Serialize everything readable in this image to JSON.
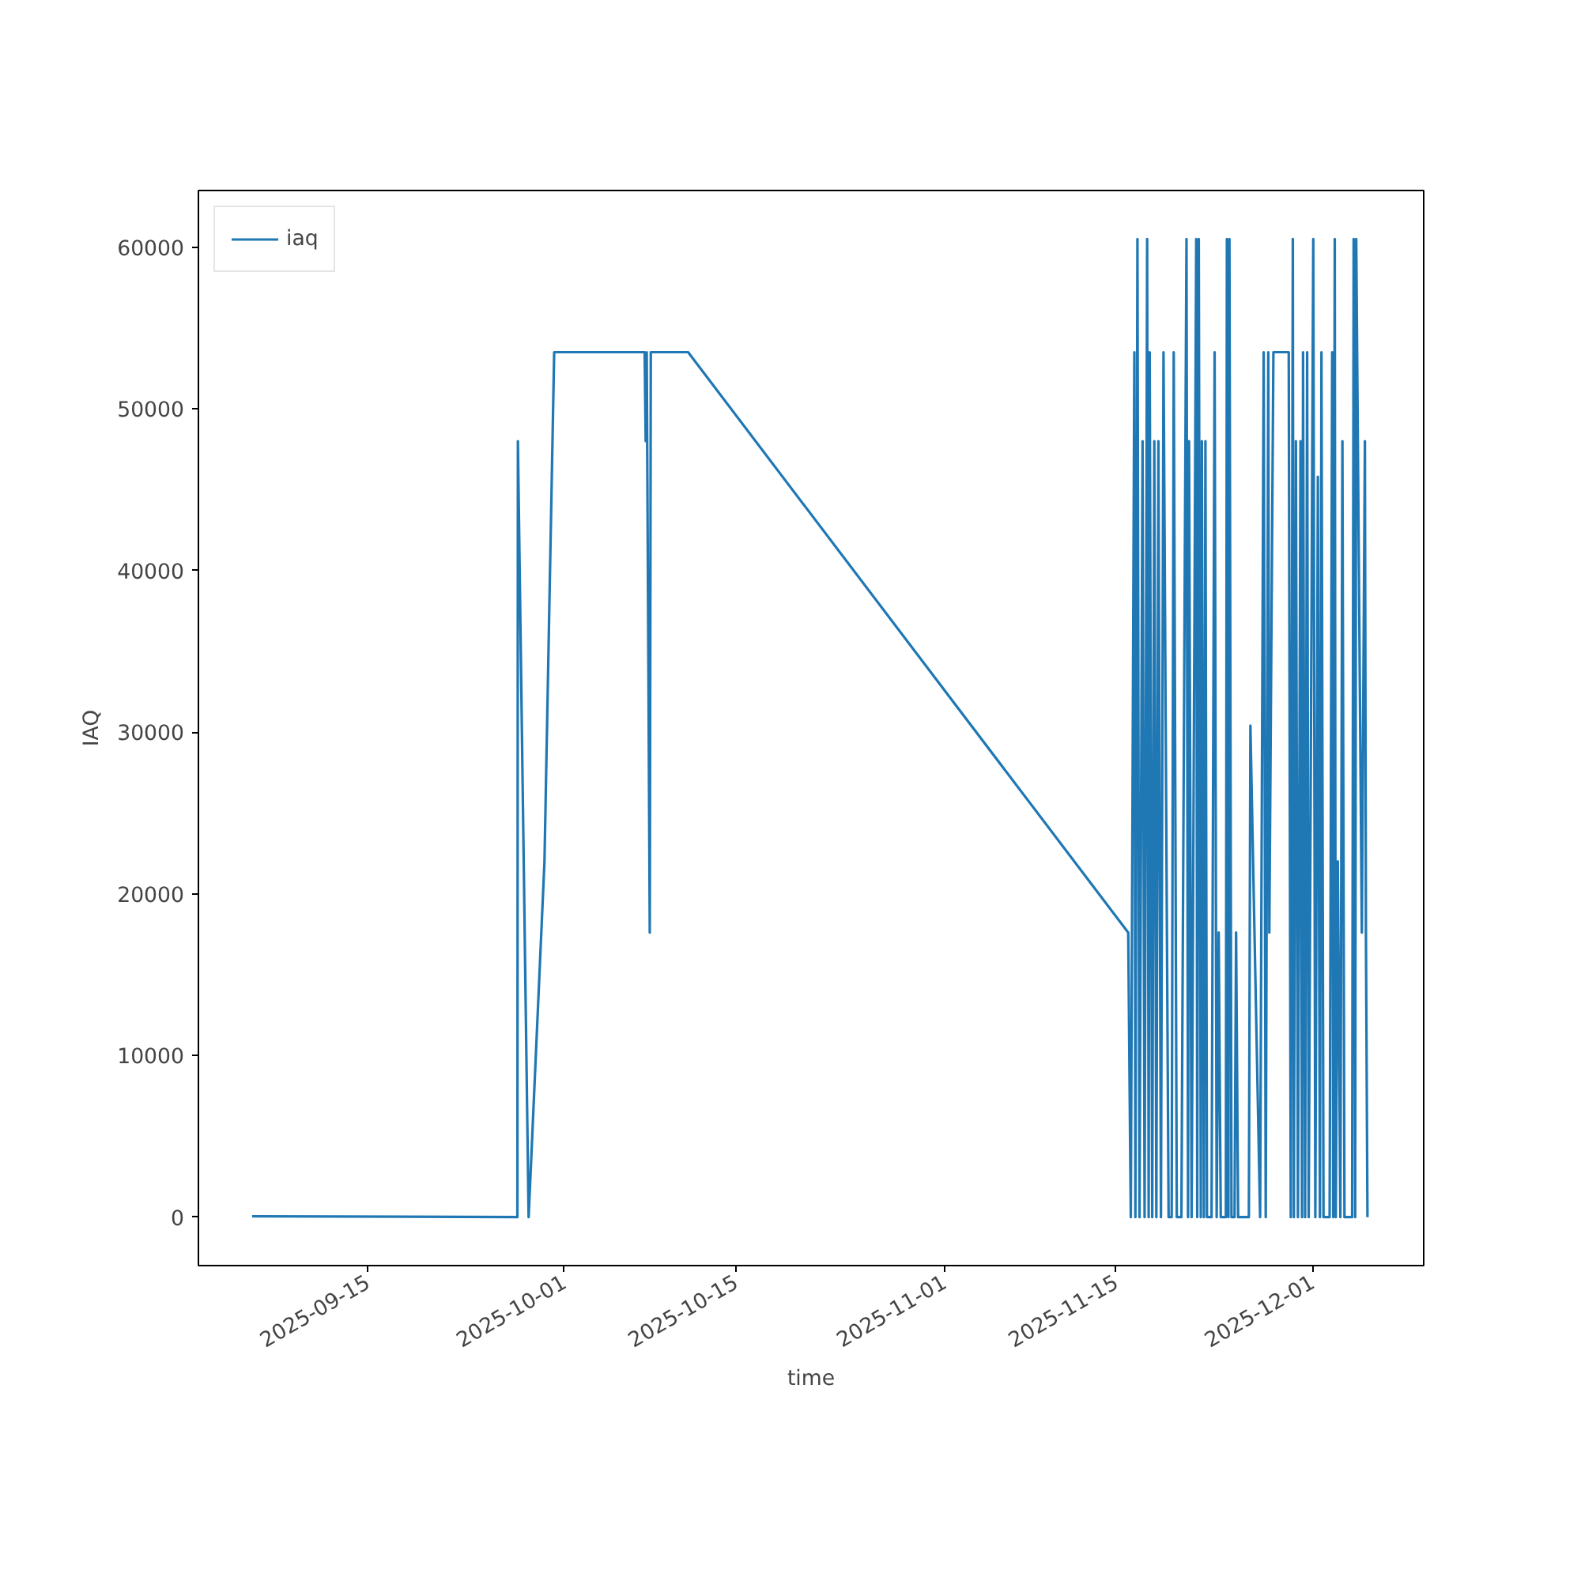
{
  "chart_data": {
    "type": "line",
    "xlabel": "time",
    "ylabel": "IAQ",
    "xlim": [
      "2025-09-01T05:00",
      "2025-12-10T02:00"
    ],
    "ylim": [
      -3000,
      63500
    ],
    "xticks": [
      "2025-09-15",
      "2025-10-01",
      "2025-10-15",
      "2025-11-01",
      "2025-11-15",
      "2025-12-01"
    ],
    "yticks": [
      0,
      10000,
      20000,
      30000,
      40000,
      50000,
      60000
    ],
    "grid": false,
    "legend": "top left",
    "line_style": "solid",
    "marker": "none",
    "x": [
      "2025-09-05T14:00",
      "2025-09-27T05:00",
      "2025-09-27T06:00",
      "2025-09-28T03:00",
      "2025-09-29T10:00",
      "2025-09-30T05:00",
      "2025-10-07T14:00",
      "2025-10-07T16:00",
      "2025-10-07T18:00",
      "2025-10-08T00:00",
      "2025-10-08T02:00",
      "2025-10-11T03:00",
      "2025-11-16T00:00",
      "2025-11-16T05:00",
      "2025-11-16T12:00",
      "2025-11-16T14:00",
      "2025-11-16T18:00",
      "2025-11-16T22:00",
      "2025-11-17T04:00",
      "2025-11-17T08:00",
      "2025-11-17T13:00",
      "2025-11-17T16:00",
      "2025-11-17T18:00",
      "2025-11-17T23:00",
      "2025-11-18T03:00",
      "2025-11-18T07:00",
      "2025-11-18T11:00",
      "2025-11-18T16:00",
      "2025-11-18T21:00",
      "2025-11-19T07:00",
      "2025-11-19T13:00",
      "2025-11-19T17:00",
      "2025-11-19T23:00",
      "2025-11-20T08:00",
      "2025-11-20T18:00",
      "2025-11-20T21:00",
      "2025-11-20T23:00",
      "2025-11-21T04:00",
      "2025-11-21T13:00",
      "2025-11-21T15:00",
      "2025-11-21T18:00",
      "2025-11-21T22:00",
      "2025-11-22T00:00",
      "2025-11-22T04:00",
      "2025-11-22T07:00",
      "2025-11-22T10:00",
      "2025-11-22T19:00",
      "2025-11-23T01:00",
      "2025-11-23T05:00",
      "2025-11-23T09:00",
      "2025-11-23T13:00",
      "2025-11-23T23:00",
      "2025-11-24T01:00",
      "2025-11-24T04:00",
      "2025-11-24T06:00",
      "2025-11-24T10:00",
      "2025-11-24T16:00",
      "2025-11-24T19:00",
      "2025-11-24T23:00",
      "2025-11-25T20:00",
      "2025-11-25T23:00",
      "2025-11-26T18:00",
      "2025-11-27T01:00",
      "2025-11-27T05:00",
      "2025-11-27T10:00",
      "2025-11-27T12:00",
      "2025-11-27T20:00",
      "2025-11-29T02:00",
      "2025-11-29T06:00",
      "2025-11-29T10:00",
      "2025-11-29T12:00",
      "2025-11-29T16:00",
      "2025-11-29T20:00",
      "2025-11-30T01:00",
      "2025-11-30T04:00",
      "2025-11-30T06:00",
      "2025-11-30T10:00",
      "2025-11-30T14:00",
      "2025-11-30T17:00",
      "2025-12-01T02:00",
      "2025-12-01T06:00",
      "2025-12-01T11:00",
      "2025-12-01T15:00",
      "2025-12-01T18:00",
      "2025-12-01T22:00",
      "2025-12-02T10:00",
      "2025-12-02T15:00",
      "2025-12-02T17:00",
      "2025-12-02T20:00",
      "2025-12-02T22:00",
      "2025-12-03T02:00",
      "2025-12-03T07:00",
      "2025-12-03T11:00",
      "2025-12-03T15:00",
      "2025-12-04T06:00",
      "2025-12-04T09:00",
      "2025-12-04T12:00",
      "2025-12-04T14:00",
      "2025-12-05T01:00",
      "2025-12-05T07:00",
      "2025-12-05T09:00",
      "2025-12-05T12:00"
    ],
    "series": [
      {
        "name": "iaq",
        "color": "#1f77b4",
        "values": [
          50,
          0,
          48000,
          0,
          22000,
          53500,
          53500,
          48000,
          53500,
          17600,
          53500,
          53500,
          17600,
          0,
          53500,
          0,
          60500,
          0,
          48000,
          0,
          60500,
          0,
          53500,
          0,
          48000,
          0,
          48000,
          0,
          53500,
          0,
          0,
          53500,
          0,
          0,
          60500,
          0,
          48000,
          0,
          60500,
          0,
          60500,
          0,
          48000,
          0,
          48000,
          0,
          0,
          53500,
          0,
          17600,
          0,
          0,
          60500,
          0,
          60500,
          0,
          0,
          17600,
          0,
          0,
          30400,
          0,
          53500,
          0,
          53500,
          17600,
          53500,
          53500,
          0,
          60500,
          0,
          48000,
          0,
          48000,
          0,
          53500,
          0,
          53500,
          0,
          60500,
          0,
          45800,
          0,
          53500,
          0,
          0,
          53500,
          0,
          60500,
          0,
          22000,
          0,
          48000,
          0,
          0,
          60500,
          0,
          60500,
          17600,
          48000,
          17600,
          0
        ]
      }
    ]
  }
}
